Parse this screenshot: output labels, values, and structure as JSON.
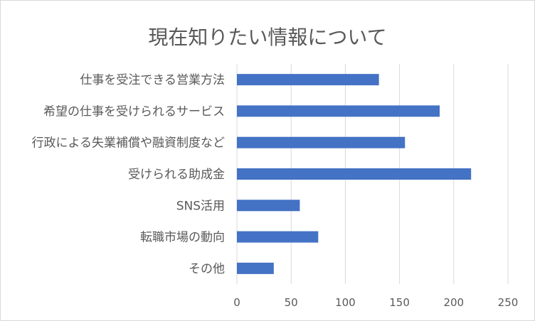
{
  "chart_data": {
    "type": "bar",
    "orientation": "horizontal",
    "title": "現在知りたい情報について",
    "categories": [
      "仕事を受注できる営業方法",
      "希望の仕事を受けられるサービス",
      "行政による失業補償や融資制度など",
      "受けられる助成金",
      "SNS活用",
      "転職市場の動向",
      "その他"
    ],
    "values": [
      131,
      187,
      155,
      216,
      58,
      75,
      34
    ],
    "xlim": [
      0,
      250
    ],
    "xticks": [
      "0",
      "50",
      "100",
      "150",
      "200",
      "250"
    ],
    "grid": true,
    "bar_color": "#4472c4",
    "grid_color": "#d9d9d9"
  }
}
